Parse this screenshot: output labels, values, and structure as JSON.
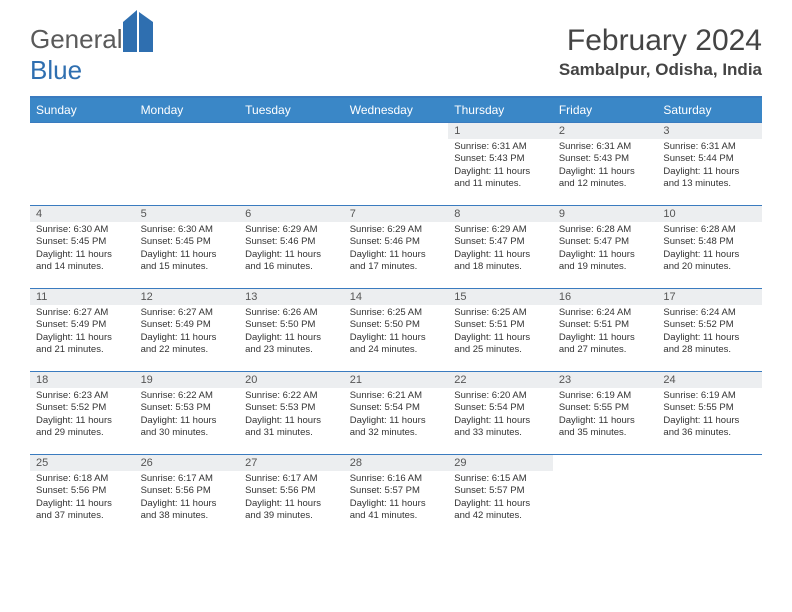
{
  "logo": {
    "part1": "General",
    "part2": "Blue"
  },
  "title": "February 2024",
  "location": "Sambalpur, Odisha, India",
  "colors": {
    "header_bg": "#3a87c7",
    "border": "#3a7bbf",
    "daynum_bg": "#eceef0"
  },
  "dayNames": [
    "Sunday",
    "Monday",
    "Tuesday",
    "Wednesday",
    "Thursday",
    "Friday",
    "Saturday"
  ],
  "weeks": [
    [
      {
        "empty": true
      },
      {
        "empty": true
      },
      {
        "empty": true
      },
      {
        "empty": true
      },
      {
        "day": "1",
        "sunrise": "Sunrise: 6:31 AM",
        "sunset": "Sunset: 5:43 PM",
        "daylight": "Daylight: 11 hours and 11 minutes."
      },
      {
        "day": "2",
        "sunrise": "Sunrise: 6:31 AM",
        "sunset": "Sunset: 5:43 PM",
        "daylight": "Daylight: 11 hours and 12 minutes."
      },
      {
        "day": "3",
        "sunrise": "Sunrise: 6:31 AM",
        "sunset": "Sunset: 5:44 PM",
        "daylight": "Daylight: 11 hours and 13 minutes."
      }
    ],
    [
      {
        "day": "4",
        "sunrise": "Sunrise: 6:30 AM",
        "sunset": "Sunset: 5:45 PM",
        "daylight": "Daylight: 11 hours and 14 minutes."
      },
      {
        "day": "5",
        "sunrise": "Sunrise: 6:30 AM",
        "sunset": "Sunset: 5:45 PM",
        "daylight": "Daylight: 11 hours and 15 minutes."
      },
      {
        "day": "6",
        "sunrise": "Sunrise: 6:29 AM",
        "sunset": "Sunset: 5:46 PM",
        "daylight": "Daylight: 11 hours and 16 minutes."
      },
      {
        "day": "7",
        "sunrise": "Sunrise: 6:29 AM",
        "sunset": "Sunset: 5:46 PM",
        "daylight": "Daylight: 11 hours and 17 minutes."
      },
      {
        "day": "8",
        "sunrise": "Sunrise: 6:29 AM",
        "sunset": "Sunset: 5:47 PM",
        "daylight": "Daylight: 11 hours and 18 minutes."
      },
      {
        "day": "9",
        "sunrise": "Sunrise: 6:28 AM",
        "sunset": "Sunset: 5:47 PM",
        "daylight": "Daylight: 11 hours and 19 minutes."
      },
      {
        "day": "10",
        "sunrise": "Sunrise: 6:28 AM",
        "sunset": "Sunset: 5:48 PM",
        "daylight": "Daylight: 11 hours and 20 minutes."
      }
    ],
    [
      {
        "day": "11",
        "sunrise": "Sunrise: 6:27 AM",
        "sunset": "Sunset: 5:49 PM",
        "daylight": "Daylight: 11 hours and 21 minutes."
      },
      {
        "day": "12",
        "sunrise": "Sunrise: 6:27 AM",
        "sunset": "Sunset: 5:49 PM",
        "daylight": "Daylight: 11 hours and 22 minutes."
      },
      {
        "day": "13",
        "sunrise": "Sunrise: 6:26 AM",
        "sunset": "Sunset: 5:50 PM",
        "daylight": "Daylight: 11 hours and 23 minutes."
      },
      {
        "day": "14",
        "sunrise": "Sunrise: 6:25 AM",
        "sunset": "Sunset: 5:50 PM",
        "daylight": "Daylight: 11 hours and 24 minutes."
      },
      {
        "day": "15",
        "sunrise": "Sunrise: 6:25 AM",
        "sunset": "Sunset: 5:51 PM",
        "daylight": "Daylight: 11 hours and 25 minutes."
      },
      {
        "day": "16",
        "sunrise": "Sunrise: 6:24 AM",
        "sunset": "Sunset: 5:51 PM",
        "daylight": "Daylight: 11 hours and 27 minutes."
      },
      {
        "day": "17",
        "sunrise": "Sunrise: 6:24 AM",
        "sunset": "Sunset: 5:52 PM",
        "daylight": "Daylight: 11 hours and 28 minutes."
      }
    ],
    [
      {
        "day": "18",
        "sunrise": "Sunrise: 6:23 AM",
        "sunset": "Sunset: 5:52 PM",
        "daylight": "Daylight: 11 hours and 29 minutes."
      },
      {
        "day": "19",
        "sunrise": "Sunrise: 6:22 AM",
        "sunset": "Sunset: 5:53 PM",
        "daylight": "Daylight: 11 hours and 30 minutes."
      },
      {
        "day": "20",
        "sunrise": "Sunrise: 6:22 AM",
        "sunset": "Sunset: 5:53 PM",
        "daylight": "Daylight: 11 hours and 31 minutes."
      },
      {
        "day": "21",
        "sunrise": "Sunrise: 6:21 AM",
        "sunset": "Sunset: 5:54 PM",
        "daylight": "Daylight: 11 hours and 32 minutes."
      },
      {
        "day": "22",
        "sunrise": "Sunrise: 6:20 AM",
        "sunset": "Sunset: 5:54 PM",
        "daylight": "Daylight: 11 hours and 33 minutes."
      },
      {
        "day": "23",
        "sunrise": "Sunrise: 6:19 AM",
        "sunset": "Sunset: 5:55 PM",
        "daylight": "Daylight: 11 hours and 35 minutes."
      },
      {
        "day": "24",
        "sunrise": "Sunrise: 6:19 AM",
        "sunset": "Sunset: 5:55 PM",
        "daylight": "Daylight: 11 hours and 36 minutes."
      }
    ],
    [
      {
        "day": "25",
        "sunrise": "Sunrise: 6:18 AM",
        "sunset": "Sunset: 5:56 PM",
        "daylight": "Daylight: 11 hours and 37 minutes."
      },
      {
        "day": "26",
        "sunrise": "Sunrise: 6:17 AM",
        "sunset": "Sunset: 5:56 PM",
        "daylight": "Daylight: 11 hours and 38 minutes."
      },
      {
        "day": "27",
        "sunrise": "Sunrise: 6:17 AM",
        "sunset": "Sunset: 5:56 PM",
        "daylight": "Daylight: 11 hours and 39 minutes."
      },
      {
        "day": "28",
        "sunrise": "Sunrise: 6:16 AM",
        "sunset": "Sunset: 5:57 PM",
        "daylight": "Daylight: 11 hours and 41 minutes."
      },
      {
        "day": "29",
        "sunrise": "Sunrise: 6:15 AM",
        "sunset": "Sunset: 5:57 PM",
        "daylight": "Daylight: 11 hours and 42 minutes."
      },
      {
        "empty": true
      },
      {
        "empty": true
      }
    ]
  ]
}
